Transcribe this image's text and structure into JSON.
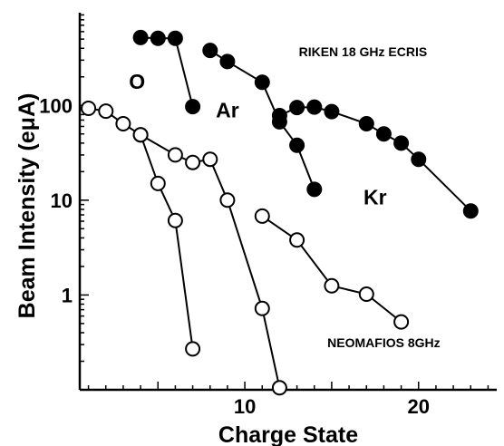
{
  "chart_data": {
    "type": "scatter",
    "title": "",
    "xlabel": "Charge State",
    "ylabel": "Beam Intensity (eμA)",
    "x_ticks": [
      10,
      20
    ],
    "y_ticks": [
      1,
      10,
      100
    ],
    "y_scale": "log",
    "xlim": [
      0.5,
      24.5
    ],
    "ylim": [
      0.1,
      950
    ],
    "grid": false,
    "annotations": [
      {
        "text": "O",
        "x": 3.8,
        "y": 150
      },
      {
        "text": "Ar",
        "x": 9.0,
        "y": 75
      },
      {
        "text": "Kr",
        "x": 17.5,
        "y": 9
      },
      {
        "text": "RIKEN 18 GHz ECRIS",
        "x": 16.8,
        "y": 330
      },
      {
        "text": "NEOMAFIOS 8GHz",
        "x": 18.0,
        "y": 0.28
      }
    ],
    "series": [
      {
        "name": "",
        "element": "O",
        "source": "RIKEN 18 GHz ECRIS",
        "marker": "filled",
        "points": [
          [
            4,
            520
          ],
          [
            5,
            510
          ],
          [
            6,
            510
          ],
          [
            7,
            97
          ]
        ]
      },
      {
        "name": "",
        "element": "Ar",
        "source": "RIKEN 18 GHz ECRIS",
        "marker": "filled",
        "points": [
          [
            8,
            380
          ],
          [
            9,
            290
          ],
          [
            11,
            175
          ],
          [
            12,
            67
          ],
          [
            13,
            38
          ],
          [
            14,
            13
          ]
        ]
      },
      {
        "name": "",
        "element": "Kr",
        "source": "RIKEN 18 GHz ECRIS",
        "marker": "filled",
        "points": [
          [
            12,
            78
          ],
          [
            13,
            95
          ],
          [
            14,
            96
          ],
          [
            15,
            86
          ],
          [
            17,
            64
          ],
          [
            18,
            50
          ],
          [
            19,
            40
          ],
          [
            20,
            27
          ],
          [
            23,
            7.7
          ]
        ]
      },
      {
        "name": "",
        "element": "O",
        "source": "NEOMAFIOS 8GHz",
        "marker": "open",
        "points": [
          [
            1,
            93
          ],
          [
            2,
            87
          ],
          [
            3,
            64
          ],
          [
            4,
            49
          ],
          [
            5,
            15
          ],
          [
            6,
            6.1
          ],
          [
            7,
            0.27
          ]
        ]
      },
      {
        "name": "",
        "element": "Ar",
        "source": "NEOMAFIOS 8GHz",
        "marker": "open",
        "points": [
          [
            4,
            49
          ],
          [
            6,
            30
          ],
          [
            7,
            25
          ],
          [
            8,
            27
          ],
          [
            9,
            10
          ],
          [
            11,
            0.72
          ],
          [
            12,
            0.105
          ]
        ]
      },
      {
        "name": "",
        "element": "Kr",
        "source": "NEOMAFIOS 8GHz",
        "marker": "open",
        "points": [
          [
            11,
            6.8
          ],
          [
            13,
            3.8
          ],
          [
            15,
            1.25
          ],
          [
            17,
            1.02
          ],
          [
            19,
            0.52
          ]
        ]
      }
    ]
  }
}
